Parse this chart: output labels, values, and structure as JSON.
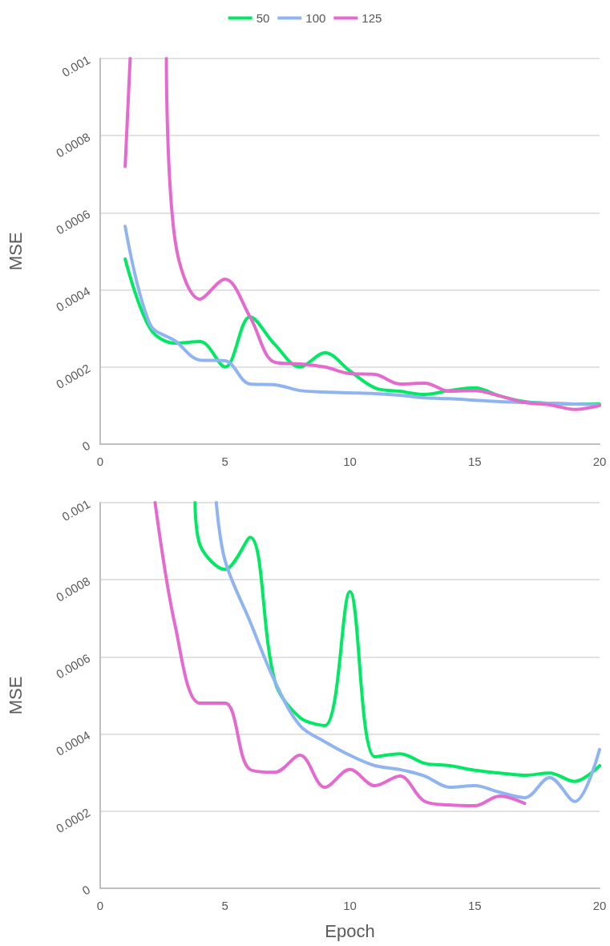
{
  "chart_data": [
    {
      "type": "line",
      "ylabel": "MSE",
      "x": [
        1,
        2,
        3,
        4,
        5,
        6,
        7,
        8,
        9,
        10,
        11,
        12,
        13,
        14,
        15,
        16,
        17,
        18,
        19,
        20
      ],
      "series": [
        {
          "name": "50",
          "color": "#00e864",
          "values": [
            0.00048,
            0.0003,
            0.000262,
            0.000266,
            0.0002,
            0.00033,
            0.000258,
            0.0002,
            0.000237,
            0.00019,
            0.000146,
            0.000137,
            0.000129,
            0.000139,
            0.000146,
            0.000125,
            0.00011,
            0.000106,
            0.000104,
            0.000104
          ]
        },
        {
          "name": "100",
          "color": "#8fb4ef",
          "values": [
            0.000565,
            0.00031,
            0.000268,
            0.000218,
            0.000216,
            0.000156,
            0.000154,
            0.000139,
            0.000135,
            0.000133,
            0.000131,
            0.000127,
            0.00012,
            0.000118,
            0.000114,
            0.00011,
            0.000108,
            0.000106,
            0.000104,
            0.000102
          ]
        },
        {
          "name": "125",
          "color": "#e46bcd",
          "x": [
            1,
            1.2,
            2,
            2.65,
            3,
            4,
            5,
            6,
            7,
            8,
            9,
            10,
            11,
            12,
            13,
            14,
            15,
            16,
            17,
            18,
            19,
            20
          ],
          "values": [
            0.00072,
            0.001,
            null,
            0.001,
            0.000528,
            0.000376,
            0.000428,
            0.00033,
            0.000212,
            0.000208,
            0.0002,
            0.000183,
            0.000181,
            0.000156,
            0.000158,
            0.000137,
            0.000139,
            0.000125,
            0.000108,
            0.000102,
            9e-05,
            0.0001
          ]
        }
      ],
      "xlim": [
        0,
        20
      ],
      "xticks": [
        0,
        5,
        10,
        15,
        20
      ],
      "ylim": [
        0,
        0.001
      ],
      "yticks": [
        0,
        0.0002,
        0.0004,
        0.0006,
        0.0008,
        0.001
      ],
      "grid": "y",
      "legend": "top",
      "marker": "none",
      "line_style": "solid"
    },
    {
      "type": "line",
      "xlabel": "Epoch",
      "ylabel": "MSE",
      "series": [
        {
          "name": "50",
          "color": "#00e864",
          "x": [
            3.8,
            4,
            5,
            6,
            7,
            8,
            9,
            10,
            11,
            12,
            13,
            14,
            15,
            16,
            17,
            18,
            19,
            20
          ],
          "values": [
            0.001,
            0.00089,
            0.000827,
            0.00091,
            0.000536,
            0.000443,
            0.000422,
            0.000769,
            0.000341,
            0.000349,
            0.000324,
            0.000318,
            0.000306,
            0.000299,
            0.000293,
            0.000299,
            0.000277,
            0.000318
          ]
        },
        {
          "name": "100",
          "color": "#8fb4ef",
          "x": [
            4.65,
            5,
            6,
            7,
            8,
            9,
            10,
            11,
            12,
            13,
            14,
            15,
            16,
            17,
            18,
            19,
            20
          ],
          "values": [
            0.001,
            0.00085,
            0.000692,
            0.000536,
            0.000422,
            0.00038,
            0.000345,
            0.000318,
            0.000308,
            0.000291,
            0.000262,
            0.000266,
            0.000249,
            0.000235,
            0.000287,
            0.000225,
            0.00036
          ]
        },
        {
          "name": "125",
          "color": "#e46bcd",
          "x": [
            2.2,
            3,
            4,
            5,
            6,
            7,
            8,
            9,
            10,
            11,
            12,
            13,
            14,
            15,
            16,
            17
          ],
          "values": [
            0.001,
            0.000682,
            0.00048,
            0.00048,
            0.000308,
            0.000301,
            0.000345,
            0.000262,
            0.000308,
            0.000266,
            0.000291,
            0.000225,
            0.000216,
            0.000214,
            0.000239,
            0.00022
          ]
        }
      ],
      "xlim": [
        0,
        20
      ],
      "xticks": [
        0,
        5,
        10,
        15,
        20
      ],
      "ylim": [
        0,
        0.001
      ],
      "yticks": [
        0,
        0.0002,
        0.0004,
        0.0006,
        0.0008,
        0.001
      ],
      "grid": "y",
      "legend": false,
      "marker": "none",
      "line_style": "solid"
    }
  ]
}
